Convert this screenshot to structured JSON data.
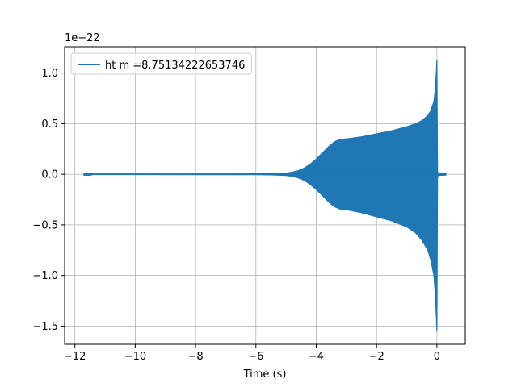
{
  "chart_data": {
    "type": "line",
    "title": "",
    "xlabel": "Time (s)",
    "ylabel": "",
    "offset_label": "1e−22",
    "xlim": [
      -12.34,
      0.94
    ],
    "ylim": [
      -1.68,
      1.26
    ],
    "xticks": [
      -12,
      -10,
      -8,
      -6,
      -4,
      -2,
      0
    ],
    "xtick_labels": [
      "−12",
      "−10",
      "−8",
      "−6",
      "−4",
      "−2",
      "0"
    ],
    "yticks": [
      -1.5,
      -1.0,
      -0.5,
      0.0,
      0.5,
      1.0
    ],
    "ytick_labels": [
      "−1.5",
      "−1.0",
      "−0.5",
      "0.0",
      "0.5",
      "1.0"
    ],
    "grid": true,
    "legend_position": "top-left",
    "colors": {
      "series": "#1f77b4",
      "grid": "#b0b0b0",
      "axes": "#000000"
    },
    "series": [
      {
        "name": "ht m =8.75134222653746",
        "kind": "oscillating-chirp-envelope",
        "x": [
          -11.7,
          -11.5,
          -11.4,
          -10.0,
          -6.0,
          -5.5,
          -5.0,
          -4.8,
          -4.6,
          -4.4,
          -4.2,
          -4.0,
          -3.8,
          -3.6,
          -3.4,
          -3.2,
          -3.0,
          -2.5,
          -2.0,
          -1.5,
          -1.0,
          -0.7,
          -0.5,
          -0.3,
          -0.2,
          -0.1,
          -0.05,
          -0.02,
          0.0,
          0.02,
          0.05,
          0.1,
          0.2,
          0.3
        ],
        "upper": [
          0.01,
          0.01,
          0.003,
          0.003,
          0.004,
          0.006,
          0.012,
          0.02,
          0.035,
          0.06,
          0.1,
          0.15,
          0.21,
          0.27,
          0.32,
          0.345,
          0.35,
          0.37,
          0.4,
          0.43,
          0.47,
          0.5,
          0.53,
          0.58,
          0.63,
          0.72,
          0.85,
          1.0,
          1.13,
          0.02,
          0.015,
          0.01,
          0.01,
          0.008
        ],
        "lower": [
          -0.01,
          -0.01,
          -0.003,
          -0.003,
          -0.004,
          -0.006,
          -0.012,
          -0.02,
          -0.035,
          -0.06,
          -0.1,
          -0.15,
          -0.21,
          -0.27,
          -0.32,
          -0.345,
          -0.35,
          -0.38,
          -0.42,
          -0.46,
          -0.52,
          -0.58,
          -0.65,
          -0.75,
          -0.85,
          -1.0,
          -1.2,
          -1.4,
          -1.55,
          -0.02,
          -0.015,
          -0.01,
          -0.01,
          -0.008
        ]
      }
    ]
  }
}
